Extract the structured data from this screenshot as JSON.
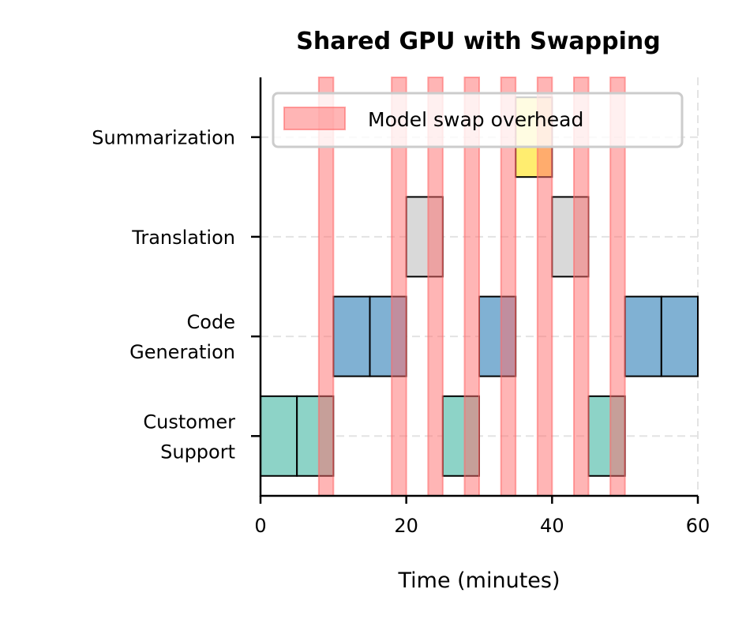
{
  "chart_data": {
    "type": "gantt",
    "title": "Shared GPU with Swapping",
    "xlabel": "Time (minutes)",
    "ylabel": "",
    "xlim": [
      0,
      60
    ],
    "xticks": [
      0,
      20,
      40,
      60
    ],
    "xtick_labels": [
      "0",
      "20",
      "40",
      "60"
    ],
    "ylim": [
      -0.6,
      3.6
    ],
    "categories": [
      "Customer Support",
      "Code Generation",
      "Translation",
      "Summarization"
    ],
    "category_labels": [
      [
        "Customer",
        "Support"
      ],
      [
        "Code",
        "Generation"
      ],
      [
        "Translation"
      ],
      [
        "Summarization"
      ]
    ],
    "grid": {
      "y": true,
      "x_at_60": true,
      "style": "dashed",
      "color": "#e0e0e0"
    },
    "legend": {
      "position": "upper right",
      "entries": [
        {
          "label": "Model swap overhead",
          "color": "#ff6b6b"
        }
      ]
    },
    "series": [
      {
        "name": "Customer Support",
        "color": "#8dd3c7",
        "row": 0,
        "segments": [
          [
            0,
            5
          ],
          [
            5,
            10
          ],
          [
            25,
            30
          ],
          [
            45,
            50
          ]
        ]
      },
      {
        "name": "Code Generation",
        "color": "#80b1d3",
        "row": 1,
        "segments": [
          [
            10,
            15
          ],
          [
            15,
            20
          ],
          [
            30,
            35
          ],
          [
            50,
            55
          ],
          [
            55,
            60
          ]
        ]
      },
      {
        "name": "Translation",
        "color": "#d9d9d9",
        "row": 2,
        "segments": [
          [
            20,
            25
          ],
          [
            40,
            45
          ]
        ]
      },
      {
        "name": "Summarization",
        "color": "#ffed6f",
        "row": 3,
        "segments": [
          [
            35,
            40
          ]
        ]
      }
    ],
    "overhead": {
      "name": "Model swap overhead",
      "color": "#ff6b6b",
      "alpha": 0.5,
      "intervals": [
        [
          8,
          10
        ],
        [
          18,
          20
        ],
        [
          23,
          25
        ],
        [
          28,
          30
        ],
        [
          33,
          35
        ],
        [
          38,
          40
        ],
        [
          43,
          45
        ],
        [
          48,
          50
        ]
      ]
    },
    "bar_height": 0.8
  }
}
